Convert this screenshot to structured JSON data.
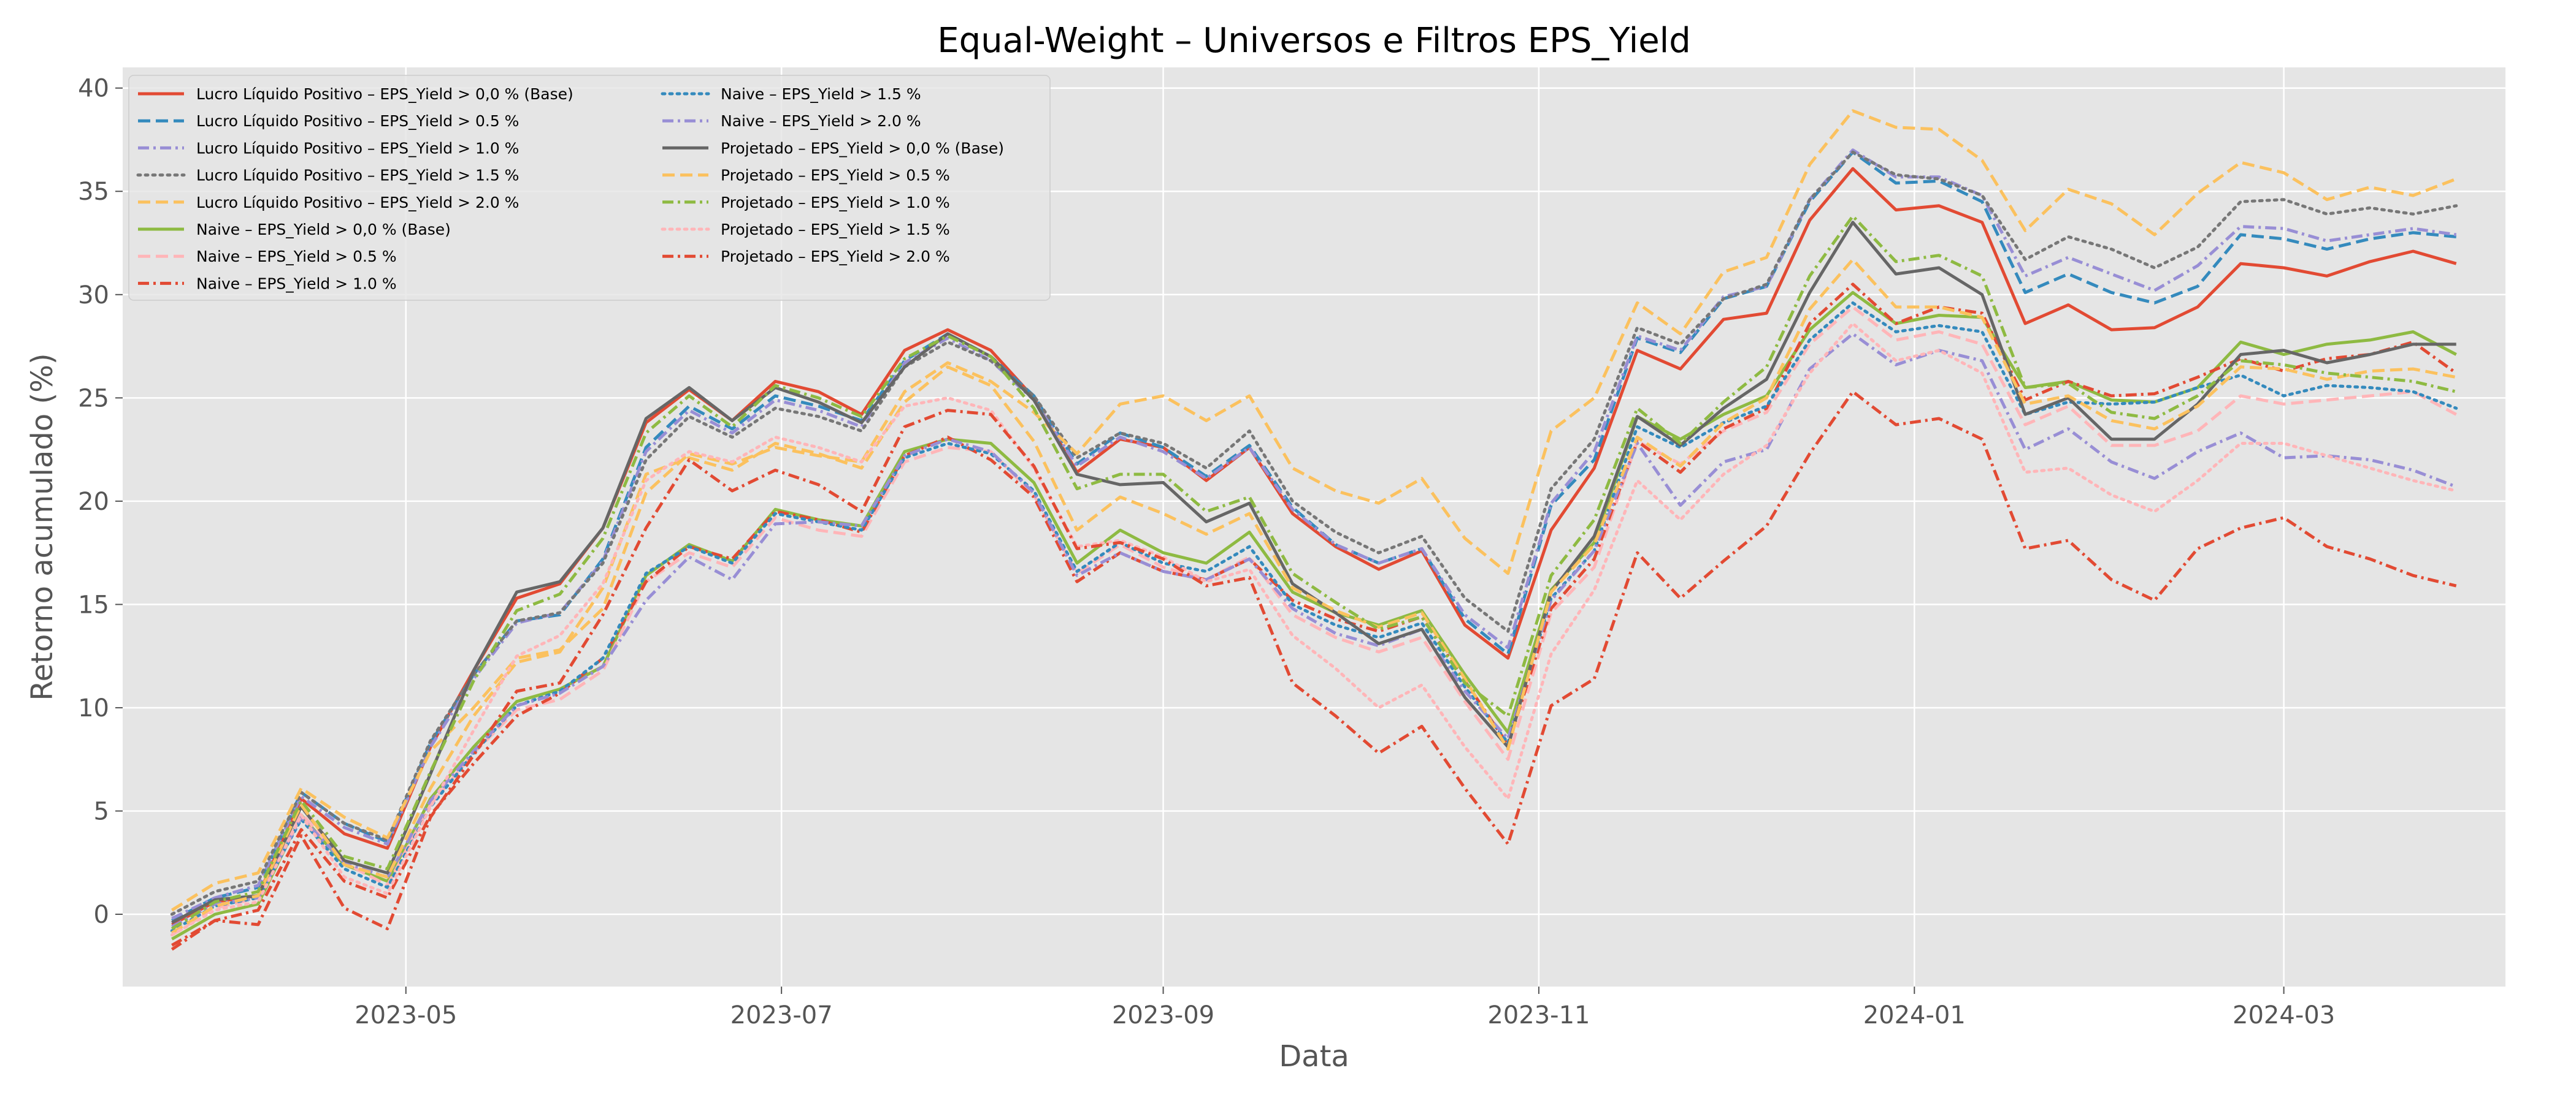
{
  "chart_data": {
    "type": "line",
    "title": "Equal-Weight – Universos e Filtros EPS_Yield",
    "xlabel": "Data",
    "ylabel": "Retorno acumulado (%)",
    "grid": true,
    "legend_position": "upper-left",
    "legend_columns": 2,
    "x_ticks": [
      "2023-05",
      "2023-07",
      "2023-09",
      "2023-11",
      "2024-01",
      "2024-03"
    ],
    "y_ticks": [
      "0",
      "5",
      "10",
      "15",
      "20",
      "25",
      "30",
      "35",
      "40"
    ],
    "x": [
      "2023-03-24",
      "2023-03-31",
      "2023-04-07",
      "2023-04-14",
      "2023-04-21",
      "2023-04-28",
      "2023-05-05",
      "2023-05-12",
      "2023-05-19",
      "2023-05-26",
      "2023-06-02",
      "2023-06-09",
      "2023-06-16",
      "2023-06-23",
      "2023-06-30",
      "2023-07-07",
      "2023-07-14",
      "2023-07-21",
      "2023-07-28",
      "2023-08-04",
      "2023-08-11",
      "2023-08-18",
      "2023-08-25",
      "2023-09-01",
      "2023-09-08",
      "2023-09-15",
      "2023-09-22",
      "2023-09-29",
      "2023-10-06",
      "2023-10-13",
      "2023-10-20",
      "2023-10-27",
      "2023-11-03",
      "2023-11-10",
      "2023-11-17",
      "2023-11-24",
      "2023-12-01",
      "2023-12-08",
      "2023-12-15",
      "2023-12-22",
      "2023-12-29",
      "2024-01-05",
      "2024-01-12",
      "2024-01-19",
      "2024-01-26",
      "2024-02-02",
      "2024-02-09",
      "2024-02-16",
      "2024-02-23",
      "2024-03-01",
      "2024-03-08",
      "2024-03-15",
      "2024-03-22",
      "2024-03-29"
    ],
    "series": [
      {
        "name": "Lucro Líquido Positivo – EPS_Yield > 0,0 % (Base)",
        "color": "#E24A33",
        "dash": "solid",
        "values": [
          -0.5,
          0.6,
          0.9,
          5.6,
          3.9,
          3.2,
          8.1,
          11.8,
          15.3,
          16.0,
          18.7,
          23.8,
          25.4,
          23.9,
          25.8,
          25.3,
          24.2,
          27.3,
          28.3,
          27.3,
          25.0,
          21.4,
          23.0,
          22.6,
          21.0,
          22.6,
          19.4,
          17.8,
          16.7,
          17.6,
          14.0,
          12.4,
          18.6,
          21.6,
          27.3,
          26.4,
          28.8,
          29.1,
          33.6,
          36.1,
          34.1,
          34.3,
          33.5,
          28.6,
          29.5,
          28.3,
          28.4,
          29.4,
          31.5,
          31.3,
          30.9,
          31.6,
          32.1,
          31.5
        ]
      },
      {
        "name": "Lucro Líquido Positivo – EPS_Yield > 0.5 %",
        "color": "#348ABD",
        "dash": "dashed",
        "values": [
          -0.3,
          0.8,
          1.3,
          5.9,
          4.4,
          3.5,
          8.3,
          11.6,
          14.2,
          14.5,
          17.2,
          22.6,
          24.6,
          23.5,
          25.1,
          24.6,
          23.9,
          26.8,
          28.1,
          27.0,
          25.1,
          21.8,
          23.3,
          22.6,
          21.2,
          22.7,
          19.7,
          17.9,
          17.0,
          17.7,
          14.3,
          12.6,
          19.8,
          22.0,
          27.9,
          27.2,
          29.8,
          30.4,
          34.5,
          36.9,
          35.4,
          35.5,
          34.5,
          30.1,
          31.0,
          30.1,
          29.6,
          30.4,
          32.9,
          32.7,
          32.2,
          32.7,
          33.0,
          32.8
        ]
      },
      {
        "name": "Lucro Líquido Positivo – EPS_Yield > 1.0 %",
        "color": "#988ED5",
        "dash": "dashdot",
        "values": [
          -0.2,
          0.8,
          1.4,
          5.7,
          4.2,
          3.4,
          8.1,
          11.4,
          14.1,
          14.6,
          17.1,
          22.4,
          24.4,
          23.3,
          24.9,
          24.4,
          23.6,
          26.7,
          27.9,
          26.8,
          24.9,
          21.7,
          23.1,
          22.4,
          21.1,
          22.6,
          19.6,
          17.9,
          17.0,
          17.7,
          14.5,
          12.9,
          19.9,
          22.4,
          28.0,
          27.3,
          29.9,
          30.4,
          34.6,
          37.0,
          35.7,
          35.7,
          34.8,
          30.9,
          31.8,
          31.0,
          30.2,
          31.4,
          33.3,
          33.2,
          32.6,
          32.9,
          33.2,
          32.9
        ]
      },
      {
        "name": "Lucro Líquido Positivo – EPS_Yield > 1.5 %",
        "color": "#777777",
        "dash": "dotted",
        "values": [
          0.0,
          1.1,
          1.6,
          5.9,
          4.4,
          3.6,
          8.4,
          11.6,
          14.2,
          14.6,
          17.0,
          22.0,
          24.1,
          23.1,
          24.5,
          24.1,
          23.4,
          26.5,
          27.7,
          26.8,
          25.1,
          22.1,
          23.3,
          22.8,
          21.6,
          23.4,
          20.0,
          18.5,
          17.5,
          18.3,
          15.3,
          13.7,
          20.6,
          23.0,
          28.4,
          27.6,
          29.8,
          30.5,
          34.6,
          36.9,
          35.8,
          35.6,
          34.8,
          31.7,
          32.8,
          32.2,
          31.3,
          32.3,
          34.5,
          34.6,
          33.9,
          34.2,
          33.9,
          34.3
        ]
      },
      {
        "name": "Lucro Líquido Positivo – EPS_Yield > 2.0 %",
        "color": "#FBC15E",
        "dash": "dashed",
        "values": [
          0.2,
          1.5,
          2.0,
          6.1,
          4.7,
          3.7,
          7.9,
          10.0,
          12.4,
          12.8,
          14.8,
          20.4,
          22.3,
          21.8,
          22.6,
          22.2,
          21.9,
          25.3,
          26.7,
          25.8,
          24.3,
          22.3,
          24.7,
          25.1,
          23.9,
          25.1,
          21.6,
          20.5,
          19.9,
          21.1,
          18.2,
          16.5,
          23.4,
          25.0,
          29.6,
          28.1,
          31.1,
          31.8,
          36.3,
          38.9,
          38.1,
          38.0,
          36.5,
          33.1,
          35.1,
          34.4,
          32.9,
          34.9,
          36.4,
          35.9,
          34.6,
          35.2,
          34.8,
          35.6
        ]
      },
      {
        "name": "Naive – EPS_Yield > 0,0 % (Base)",
        "color": "#8EBA42",
        "dash": "solid",
        "values": [
          -1.2,
          0.0,
          0.5,
          4.8,
          2.4,
          1.6,
          5.6,
          8.1,
          10.3,
          10.9,
          12.0,
          16.4,
          17.9,
          17.1,
          19.6,
          19.1,
          18.8,
          22.4,
          23.0,
          22.8,
          20.9,
          17.0,
          18.6,
          17.5,
          17.0,
          18.5,
          15.6,
          14.6,
          14.0,
          14.7,
          11.6,
          8.8,
          15.7,
          18.0,
          24.1,
          23.0,
          24.2,
          25.1,
          28.3,
          30.1,
          28.6,
          29.0,
          28.9,
          25.5,
          25.8,
          24.9,
          24.8,
          25.5,
          27.7,
          27.1,
          27.6,
          27.8,
          28.2,
          27.1
        ]
      },
      {
        "name": "Naive – EPS_Yield > 0.5 %",
        "color": "#FFB5B8",
        "dash": "dashed",
        "values": [
          -1.0,
          0.3,
          0.8,
          4.9,
          2.5,
          1.4,
          5.3,
          7.8,
          9.9,
          10.4,
          11.8,
          16.1,
          17.5,
          16.8,
          19.2,
          18.6,
          18.3,
          21.9,
          22.6,
          22.4,
          20.3,
          16.5,
          17.9,
          16.8,
          16.2,
          17.3,
          14.5,
          13.4,
          12.7,
          13.4,
          10.3,
          7.5,
          14.6,
          16.8,
          22.9,
          21.8,
          23.4,
          24.3,
          27.6,
          29.4,
          27.8,
          28.2,
          27.6,
          23.7,
          24.6,
          22.7,
          22.7,
          23.4,
          25.1,
          24.7,
          24.9,
          25.1,
          25.3,
          24.2
        ]
      },
      {
        "name": "Naive – EPS_Yield > 1.0 %",
        "color": "#E24A33",
        "dash": "dashdot",
        "values": [
          -1.5,
          -0.3,
          0.2,
          4.1,
          1.6,
          0.8,
          4.8,
          7.3,
          9.6,
          10.7,
          12.4,
          16.1,
          17.8,
          17.2,
          19.5,
          19.1,
          18.5,
          22.2,
          23.1,
          22.0,
          20.2,
          16.1,
          17.5,
          16.6,
          16.2,
          17.2,
          15.2,
          14.3,
          13.7,
          14.4,
          11.3,
          8.2,
          14.8,
          17.2,
          22.9,
          21.4,
          23.5,
          24.5,
          28.6,
          30.5,
          28.6,
          29.4,
          29.1,
          24.9,
          25.8,
          25.1,
          25.2,
          26.0,
          26.9,
          26.3,
          26.9,
          27.1,
          27.7,
          26.2
        ]
      },
      {
        "name": "Naive – EPS_Yield > 1.5 %",
        "color": "#348ABD",
        "dash": "dotted",
        "values": [
          -0.8,
          0.4,
          0.8,
          4.6,
          2.2,
          1.3,
          5.2,
          7.8,
          10.1,
          10.8,
          12.4,
          16.5,
          17.8,
          17.0,
          19.4,
          19.0,
          18.6,
          22.1,
          22.8,
          22.3,
          20.5,
          16.6,
          18.0,
          17.0,
          16.6,
          17.8,
          15.0,
          14.0,
          13.4,
          14.1,
          11.0,
          8.3,
          15.3,
          17.6,
          23.6,
          22.6,
          23.8,
          24.6,
          27.8,
          29.6,
          28.2,
          28.5,
          28.2,
          24.2,
          24.8,
          24.7,
          24.8,
          25.5,
          26.1,
          25.1,
          25.6,
          25.5,
          25.3,
          24.5
        ]
      },
      {
        "name": "Naive – EPS_Yield > 2.0 %",
        "color": "#988ED5",
        "dash": "dashdot",
        "values": [
          -0.6,
          0.5,
          0.8,
          4.7,
          2.5,
          1.8,
          5.5,
          7.9,
          10.1,
          10.7,
          12.0,
          15.2,
          17.3,
          16.2,
          18.9,
          19.0,
          18.8,
          22.2,
          23.0,
          22.4,
          20.4,
          16.4,
          17.5,
          16.6,
          16.2,
          17.2,
          14.8,
          13.6,
          13.0,
          13.8,
          10.8,
          8.5,
          15.2,
          17.6,
          22.8,
          19.8,
          21.9,
          22.5,
          26.4,
          28.1,
          26.6,
          27.3,
          26.8,
          22.5,
          23.5,
          21.9,
          21.1,
          22.4,
          23.3,
          22.1,
          22.2,
          22.0,
          21.5,
          20.7
        ]
      },
      {
        "name": "Projetado – EPS_Yield > 0,0 % (Base)",
        "color": "#666666",
        "dash": "solid",
        "values": [
          -0.4,
          0.7,
          0.9,
          5.2,
          2.6,
          2.0,
          6.8,
          11.8,
          15.6,
          16.1,
          18.7,
          24.0,
          25.5,
          23.9,
          25.5,
          24.8,
          23.8,
          26.5,
          28.1,
          27.0,
          24.9,
          21.3,
          20.8,
          20.9,
          19.0,
          19.9,
          16.0,
          14.6,
          13.1,
          13.8,
          10.5,
          8.1,
          15.6,
          18.3,
          24.1,
          22.7,
          24.5,
          25.9,
          30.1,
          33.5,
          31.0,
          31.3,
          30.0,
          24.2,
          25.0,
          23.0,
          23.0,
          24.7,
          27.1,
          27.3,
          26.7,
          27.1,
          27.6,
          27.6
        ]
      },
      {
        "name": "Projetado – EPS_Yield > 0.5 %",
        "color": "#FBC15E",
        "dash": "dashed",
        "values": [
          -0.9,
          0.4,
          0.9,
          5.3,
          2.4,
          1.8,
          6.1,
          9.6,
          12.2,
          12.7,
          15.8,
          21.3,
          22.1,
          21.5,
          22.8,
          22.3,
          21.6,
          24.8,
          26.5,
          25.6,
          22.9,
          18.6,
          20.2,
          19.4,
          18.4,
          19.4,
          15.8,
          14.7,
          13.9,
          14.6,
          11.4,
          8.0,
          15.6,
          17.9,
          23.1,
          21.7,
          23.8,
          25.0,
          29.3,
          31.7,
          29.4,
          29.4,
          28.9,
          24.7,
          25.1,
          23.9,
          23.5,
          24.6,
          26.5,
          26.4,
          25.9,
          26.3,
          26.4,
          26.0
        ]
      },
      {
        "name": "Projetado – EPS_Yield > 1.0 %",
        "color": "#8EBA42",
        "dash": "dashdot",
        "values": [
          -0.7,
          0.6,
          1.1,
          5.5,
          2.8,
          2.2,
          6.9,
          11.3,
          14.7,
          15.5,
          18.2,
          23.3,
          25.1,
          23.6,
          25.6,
          25.0,
          24.1,
          26.9,
          28.0,
          27.0,
          24.5,
          20.6,
          21.3,
          21.3,
          19.5,
          20.2,
          16.5,
          15.1,
          13.8,
          14.4,
          11.2,
          9.6,
          16.4,
          19.1,
          24.5,
          22.8,
          24.8,
          26.5,
          30.9,
          33.8,
          31.6,
          31.9,
          30.9,
          25.5,
          25.7,
          24.3,
          24.0,
          25.1,
          26.8,
          26.6,
          26.2,
          26.0,
          25.8,
          25.3
        ]
      },
      {
        "name": "Projetado – EPS_Yield > 1.5 %",
        "color": "#FFB5B8",
        "dash": "dotted",
        "values": [
          -1.0,
          0.2,
          0.6,
          4.8,
          1.8,
          1.0,
          5.2,
          8.9,
          12.5,
          13.5,
          16.0,
          21.0,
          22.4,
          21.9,
          23.1,
          22.6,
          21.9,
          24.6,
          25.0,
          24.4,
          21.6,
          17.8,
          18.1,
          17.3,
          16.1,
          16.7,
          13.5,
          11.9,
          10.0,
          11.1,
          8.1,
          5.6,
          12.6,
          15.7,
          21.0,
          19.1,
          21.3,
          22.7,
          26.2,
          28.6,
          26.8,
          27.3,
          26.2,
          21.4,
          21.6,
          20.3,
          19.5,
          21.0,
          22.8,
          22.8,
          22.2,
          21.6,
          21.0,
          20.5
        ]
      },
      {
        "name": "Projetado – EPS_Yield > 2.0 %",
        "color": "#E24A33",
        "dash": "dashdot",
        "values": [
          -1.7,
          -0.3,
          -0.5,
          3.8,
          0.3,
          -0.7,
          4.7,
          7.7,
          10.8,
          11.2,
          14.5,
          18.7,
          22.0,
          20.5,
          21.5,
          20.8,
          19.5,
          23.6,
          24.4,
          24.2,
          21.7,
          17.7,
          18.0,
          17.2,
          15.9,
          16.3,
          11.2,
          9.6,
          7.8,
          9.1,
          6.1,
          3.4,
          10.1,
          11.4,
          17.5,
          15.3,
          17.1,
          18.8,
          22.3,
          25.3,
          23.7,
          24.0,
          23.0,
          17.7,
          18.1,
          16.2,
          15.2,
          17.7,
          18.7,
          19.2,
          17.8,
          17.2,
          16.4,
          15.9
        ]
      }
    ]
  }
}
